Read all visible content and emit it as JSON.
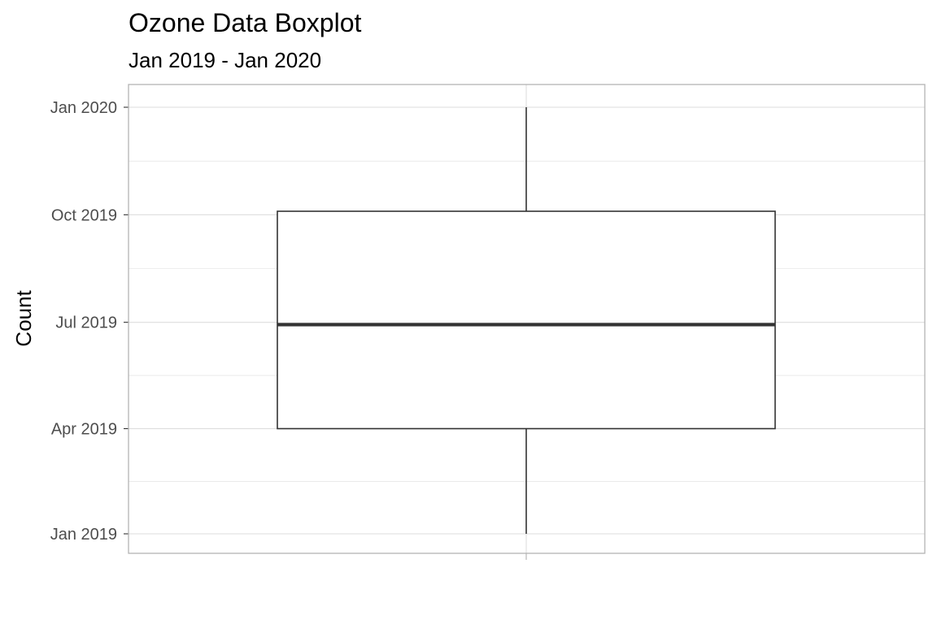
{
  "chart_data": {
    "type": "boxplot",
    "title": "Ozone Data Boxplot",
    "subtitle": "Jan 2019 - Jan 2020",
    "xlabel": "",
    "ylabel": "Count",
    "y_scale": "date",
    "ylim": [
      "2019-01-01",
      "2020-01-01"
    ],
    "y_ticks": [
      {
        "value": "2019-01-01",
        "label": "Jan 2019"
      },
      {
        "value": "2019-04-01",
        "label": "Apr 2019"
      },
      {
        "value": "2019-07-01",
        "label": "Jul 2019"
      },
      {
        "value": "2019-10-01",
        "label": "Oct 2019"
      },
      {
        "value": "2020-01-01",
        "label": "Jan 2020"
      }
    ],
    "grid": true,
    "legend": "none",
    "boxes": [
      {
        "min": "2019-01-01",
        "q1": "2019-04-01",
        "median": "2019-06-29",
        "q3": "2019-10-04",
        "max": "2020-01-01"
      }
    ],
    "colors": {
      "grid": "#dedede",
      "panel_border": "#b3b3b3",
      "box_stroke": "#333333",
      "box_fill": "#ffffff",
      "tick_label": "#4d4d4d"
    }
  }
}
